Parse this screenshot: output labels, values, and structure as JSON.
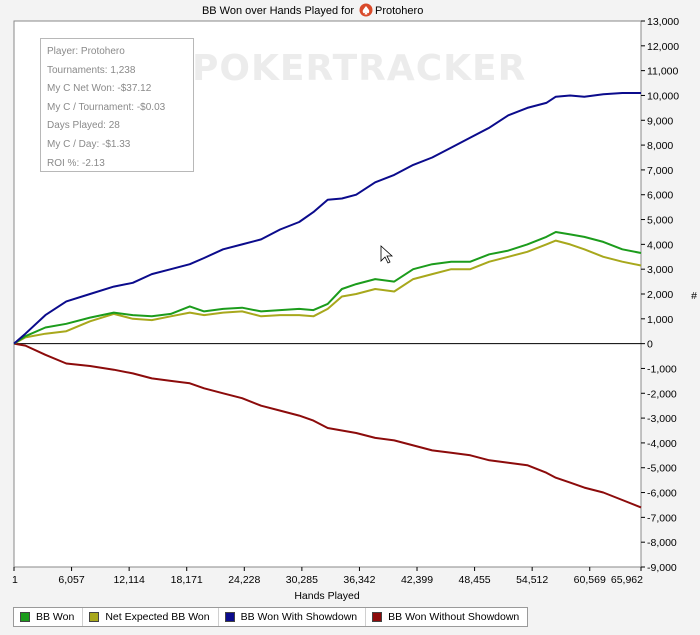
{
  "chart_data": {
    "type": "line",
    "title": "BB Won over Hands Played for",
    "player_name": "Protohero",
    "xlabel": "Hands Played",
    "ylabel": "",
    "xlim": [
      1,
      65962
    ],
    "ylim": [
      -9000,
      13000
    ],
    "x_ticks": [
      "1",
      "6,057",
      "12,114",
      "18,171",
      "24,228",
      "30,285",
      "36,342",
      "42,399",
      "48,455",
      "54,512",
      "60,569",
      "65,962"
    ],
    "x_tick_values": [
      1,
      6057,
      12114,
      18171,
      24228,
      30285,
      36342,
      42399,
      48455,
      54512,
      60569,
      65962
    ],
    "y_ticks": [
      -9000,
      -8000,
      -7000,
      -6000,
      -5000,
      -4000,
      -3000,
      -2000,
      -1000,
      0,
      1000,
      2000,
      3000,
      4000,
      5000,
      6000,
      7000,
      8000,
      9000,
      10000,
      11000,
      12000,
      13000
    ],
    "y_tick_labels": [
      "-9,000",
      "-8,000",
      "-7,000",
      "-6,000",
      "-5,000",
      "-4,000",
      "-3,000",
      "-2,000",
      "-1,000",
      "0",
      "1,000",
      "2,000",
      "3,000",
      "4,000",
      "5,000",
      "6,000",
      "7,000",
      "8,000",
      "9,000",
      "10,000",
      "11,000",
      "12,000",
      "13,000"
    ],
    "legend_position": "bottom",
    "series": [
      {
        "name": "BB Won",
        "color": "#1c9c1c",
        "x": [
          1,
          1200,
          3300,
          5500,
          8000,
          10500,
          12500,
          14500,
          16500,
          18500,
          20000,
          22000,
          24000,
          26000,
          28000,
          30000,
          31500,
          33000,
          34500,
          36000,
          38000,
          40000,
          42000,
          44000,
          46000,
          48000,
          50000,
          52000,
          54000,
          56000,
          57000,
          58500,
          60000,
          62000,
          64000,
          65962
        ],
        "y": [
          0,
          300,
          650,
          800,
          1050,
          1250,
          1150,
          1100,
          1200,
          1500,
          1300,
          1400,
          1450,
          1300,
          1350,
          1400,
          1350,
          1600,
          2200,
          2400,
          2600,
          2500,
          3000,
          3200,
          3300,
          3300,
          3600,
          3750,
          4000,
          4300,
          4500,
          4400,
          4300,
          4100,
          3800,
          3650
        ]
      },
      {
        "name": "Net Expected BB Won",
        "color": "#a8a81c",
        "x": [
          1,
          1200,
          3300,
          5500,
          8000,
          10500,
          12500,
          14500,
          16500,
          18500,
          20000,
          22000,
          24000,
          26000,
          28000,
          30000,
          31500,
          33000,
          34500,
          36000,
          38000,
          40000,
          42000,
          44000,
          46000,
          48000,
          50000,
          52000,
          54000,
          56000,
          57000,
          58500,
          60000,
          62000,
          64000,
          65962
        ],
        "y": [
          0,
          250,
          400,
          500,
          900,
          1200,
          1000,
          950,
          1100,
          1250,
          1150,
          1250,
          1300,
          1100,
          1150,
          1150,
          1100,
          1400,
          1900,
          2000,
          2200,
          2100,
          2600,
          2800,
          3000,
          3000,
          3300,
          3500,
          3700,
          4000,
          4150,
          4000,
          3800,
          3500,
          3300,
          3150
        ]
      },
      {
        "name": "BB Won With Showdown",
        "color": "#0b0b8c",
        "x": [
          1,
          1200,
          3300,
          5500,
          8000,
          10500,
          12500,
          14500,
          16500,
          18500,
          20000,
          22000,
          24000,
          26000,
          28000,
          30000,
          31500,
          33000,
          34500,
          36000,
          38000,
          40000,
          42000,
          44000,
          46000,
          48000,
          50000,
          52000,
          54000,
          56000,
          57000,
          58500,
          60000,
          62000,
          64000,
          65962
        ],
        "y": [
          0,
          400,
          1150,
          1700,
          2000,
          2300,
          2450,
          2800,
          3000,
          3200,
          3450,
          3800,
          4000,
          4200,
          4600,
          4900,
          5300,
          5800,
          5850,
          6000,
          6500,
          6800,
          7200,
          7500,
          7900,
          8300,
          8700,
          9200,
          9500,
          9700,
          9950,
          10000,
          9950,
          10050,
          10100,
          10100
        ]
      },
      {
        "name": "BB Won Without Showdown",
        "color": "#8c0b0b",
        "x": [
          1,
          1200,
          3300,
          5500,
          8000,
          10500,
          12500,
          14500,
          16500,
          18500,
          20000,
          22000,
          24000,
          26000,
          28000,
          30000,
          31500,
          33000,
          34500,
          36000,
          38000,
          40000,
          42000,
          44000,
          46000,
          48000,
          50000,
          52000,
          54000,
          56000,
          57000,
          58500,
          60000,
          62000,
          64000,
          65962
        ],
        "y": [
          0,
          -80,
          -450,
          -800,
          -900,
          -1050,
          -1200,
          -1400,
          -1500,
          -1600,
          -1800,
          -2000,
          -2200,
          -2500,
          -2700,
          -2900,
          -3100,
          -3400,
          -3500,
          -3600,
          -3800,
          -3900,
          -4100,
          -4300,
          -4400,
          -4500,
          -4700,
          -4800,
          -4900,
          -5200,
          -5400,
          -5600,
          -5800,
          -6000,
          -6300,
          -6600
        ]
      }
    ]
  },
  "info_box": {
    "lines": [
      "Player: Protohero",
      "Tournaments: 1,238",
      "My C Net Won: -$37.12",
      "My C / Tournament: -$0.03",
      "Days Played: 28",
      "My C / Day: -$1.33",
      "ROI %: -2.13"
    ]
  },
  "watermark": "POKERTRACKER",
  "right_axis_marker": "#"
}
